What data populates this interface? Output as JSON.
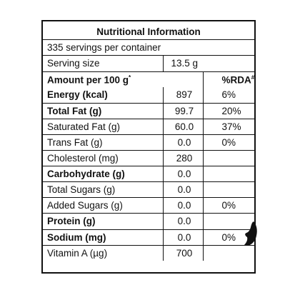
{
  "label": {
    "title": "Nutritional Information",
    "servings": "335 servings per container",
    "serving_size_label": "Serving size",
    "serving_size_value": "13.5 g",
    "amount_header": "Amount per 100 g",
    "amount_header_mark": "*",
    "rda_header": "%RDA",
    "rda_header_mark": "#",
    "rows": [
      {
        "name": "Energy (kcal)",
        "value": "897",
        "rda": "6%",
        "bold": true
      },
      {
        "name": "Total Fat (g)",
        "value": "99.7",
        "rda": "20%",
        "bold": true
      },
      {
        "name": "Saturated Fat (g)",
        "value": "60.0",
        "rda": "37%",
        "bold": false
      },
      {
        "name": "Trans Fat (g)",
        "value": "0.0",
        "rda": "0%",
        "bold": false
      },
      {
        "name": "Cholesterol (mg)",
        "value": "280",
        "rda": "",
        "bold": false
      },
      {
        "name": "Carbohydrate (g)",
        "value": "0.0",
        "rda": "",
        "bold": true
      },
      {
        "name": "Total Sugars (g)",
        "value": "0.0",
        "rda": "",
        "bold": false
      },
      {
        "name": "Added Sugars (g)",
        "value": "0.0",
        "rda": "0%",
        "bold": false
      },
      {
        "name": "Protein (g)",
        "value": "0.0",
        "rda": "",
        "bold": true
      },
      {
        "name": "Sodium (mg)",
        "value": "0.0",
        "rda": "0%",
        "bold": true
      },
      {
        "name": "Vitamin A (µg)",
        "value": "700",
        "rda": "",
        "bold": false
      }
    ]
  }
}
